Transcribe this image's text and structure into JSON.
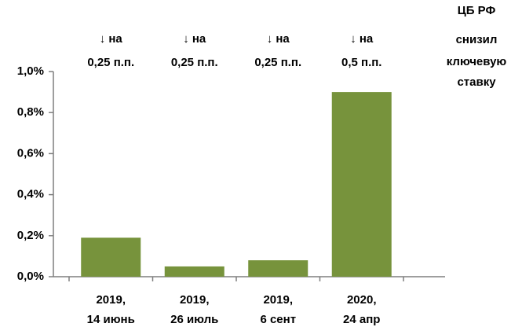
{
  "chart_data": {
    "type": "bar",
    "categories": [
      [
        "2019,",
        "14 июнь"
      ],
      [
        "2019,",
        "26 июль"
      ],
      [
        "2019,",
        "6 сент"
      ],
      [
        "2020,",
        "24 апр"
      ]
    ],
    "values": [
      0.19,
      0.05,
      0.08,
      0.9
    ],
    "annotations": [
      [
        "↓ на",
        "0,25 п.п."
      ],
      [
        "↓ на",
        "0,25 п.п."
      ],
      [
        "↓ на",
        "0,25 п.п."
      ],
      [
        "↓ на",
        "0,5 п.п."
      ]
    ],
    "note": [
      "ЦБ РФ",
      "снизил",
      "ключевую",
      "ставку"
    ],
    "color": "#77933c",
    "ylim": [
      0,
      1.0
    ],
    "yticks": [
      {
        "value": 0,
        "label": "0,0%"
      },
      {
        "value": 0.2,
        "label": "0,2%"
      },
      {
        "value": 0.4,
        "label": "0,4%"
      },
      {
        "value": 0.6,
        "label": "0,6%"
      },
      {
        "value": 0.8,
        "label": "0,8%"
      },
      {
        "value": 1.0,
        "label": "1,0%"
      }
    ],
    "grid": false
  }
}
